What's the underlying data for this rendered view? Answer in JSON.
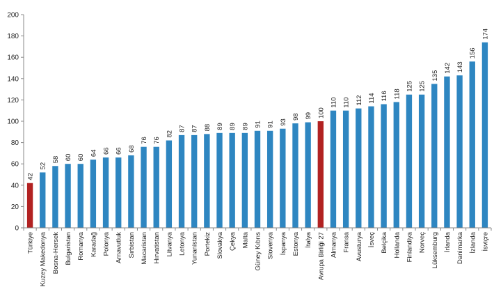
{
  "chart_data": {
    "type": "bar",
    "title": "",
    "xlabel": "",
    "ylabel": "",
    "ylim": [
      0,
      200
    ],
    "yticks": [
      0,
      20,
      40,
      60,
      80,
      100,
      120,
      140,
      160,
      180,
      200
    ],
    "grid": false,
    "categories": [
      "Türkiye",
      "Kuzey Makedonya",
      "Bosna-Hersek",
      "Bulgaristan",
      "Romanya",
      "Karadağ",
      "Polonya",
      "Arnavutluk",
      "Sırbistan",
      "Macaristan",
      "Hırvatistan",
      "Litvanya",
      "Letonya",
      "Yunanistan",
      "Portekiz",
      "Slovakya",
      "Çekya",
      "Malta",
      "Güney Kıbrıs",
      "Slovenya",
      "İspanya",
      "Estonya",
      "İtalya",
      "Avrupa Birliği 27",
      "Almanya",
      "Fransa",
      "Avusturya",
      "İsveç",
      "Belçika",
      "Hollanda",
      "Finlandiya",
      "Norveç",
      "Lüksemburg",
      "İrlanda",
      "Danimarka",
      "İzlanda",
      "İsviçre"
    ],
    "values": [
      42,
      52,
      58,
      60,
      60,
      64,
      66,
      66,
      68,
      76,
      76,
      82,
      87,
      87,
      88,
      89,
      89,
      89,
      91,
      91,
      93,
      98,
      99,
      100,
      110,
      110,
      112,
      114,
      116,
      118,
      125,
      125,
      135,
      142,
      143,
      156,
      174
    ],
    "colors": {
      "default": "#2E86C1",
      "highlight": "#B22222"
    },
    "highlighted_categories": [
      "Türkiye",
      "Avrupa Birliği 27"
    ]
  }
}
